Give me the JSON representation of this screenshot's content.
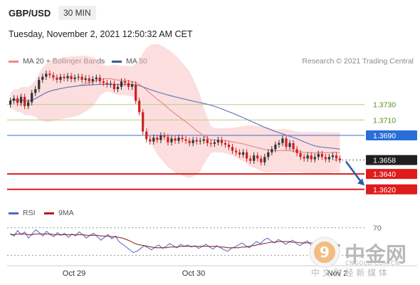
{
  "header": {
    "symbol": "GBP/USD",
    "timeframe": "30 MIN",
    "datetime": "Tuesday, November 2, 2021 12:50:32 AM CET"
  },
  "legend": {
    "ma20_bb": "MA 20 + Bollinger Bands",
    "ma50": "MA 50",
    "rsi": "RSI",
    "ma9": "9MA"
  },
  "research": "Research © 2021 Trading Central",
  "colors": {
    "up_candle": "#333333",
    "down_candle": "#cc2222",
    "bollinger_band": "#f9c2c2",
    "ma20": "#e88b8b",
    "ma50": "#6a7bbf",
    "support": "#e01b1b",
    "resistance_main": "#3a6fd0",
    "resistance_minor": "#b8cc8a",
    "rsi": "#4a67c8",
    "rsi_ma": "#8b1a1a"
  },
  "chart_data": {
    "type": "candlestick",
    "x_ticks": [
      "Oct 29",
      "Oct 30",
      "Nov 2"
    ],
    "y_range": [
      1.3605,
      1.3775
    ],
    "last_price": 1.3658,
    "levels": [
      {
        "label": "1.3730",
        "value": 1.373,
        "kind": "resistance-minor"
      },
      {
        "label": "1.3710",
        "value": 1.371,
        "kind": "resistance-minor"
      },
      {
        "label": "1.3690",
        "value": 1.369,
        "kind": "resistance"
      },
      {
        "label": "1.3658",
        "value": 1.3658,
        "kind": "last-price"
      },
      {
        "label": "1.3640",
        "value": 1.364,
        "kind": "support"
      },
      {
        "label": "1.3620",
        "value": 1.362,
        "kind": "support"
      }
    ],
    "forecast_arrow": {
      "from": 1.3658,
      "to": 1.3625,
      "direction": "down"
    },
    "candles_close": [
      1.3735,
      1.3738,
      1.3732,
      1.374,
      1.3728,
      1.3733,
      1.3745,
      1.375,
      1.3762,
      1.3766,
      1.377,
      1.3768,
      1.3765,
      1.3762,
      1.3766,
      1.3764,
      1.3767,
      1.3763,
      1.3765,
      1.3766,
      1.3762,
      1.3764,
      1.376,
      1.3763,
      1.3765,
      1.376,
      1.3758,
      1.3756,
      1.3757,
      1.375,
      1.3753,
      1.376,
      1.3758,
      1.3753,
      1.3756,
      1.3735,
      1.372,
      1.3695,
      1.3685,
      1.3682,
      1.3687,
      1.3684,
      1.369,
      1.3688,
      1.3681,
      1.3686,
      1.3683,
      1.3687,
      1.3685,
      1.3683,
      1.368,
      1.3684,
      1.3682,
      1.3683,
      1.3685,
      1.368,
      1.3679,
      1.3681,
      1.3684,
      1.368,
      1.3678,
      1.3675,
      1.367,
      1.3668,
      1.3665,
      1.3668,
      1.366,
      1.3657,
      1.3664,
      1.366,
      1.3655,
      1.3662,
      1.3668,
      1.3672,
      1.3678,
      1.368,
      1.3686,
      1.3675,
      1.368,
      1.3672,
      1.3667,
      1.3662,
      1.366,
      1.3664,
      1.3659,
      1.3662,
      1.3666,
      1.3662,
      1.3659,
      1.3662,
      1.3664,
      1.366,
      1.3658
    ],
    "candles_open": [
      1.373,
      1.3735,
      1.3738,
      1.3732,
      1.374,
      1.3728,
      1.3733,
      1.3745,
      1.375,
      1.3762,
      1.3766,
      1.377,
      1.3768,
      1.3765,
      1.3762,
      1.3766,
      1.3764,
      1.3767,
      1.3763,
      1.3765,
      1.3766,
      1.3762,
      1.3764,
      1.376,
      1.3763,
      1.3765,
      1.376,
      1.3758,
      1.3756,
      1.3757,
      1.375,
      1.3753,
      1.376,
      1.3758,
      1.3753,
      1.3756,
      1.3735,
      1.372,
      1.3695,
      1.3685,
      1.3682,
      1.3687,
      1.3684,
      1.369,
      1.3688,
      1.3681,
      1.3686,
      1.3683,
      1.3687,
      1.3685,
      1.3683,
      1.368,
      1.3684,
      1.3682,
      1.3683,
      1.3685,
      1.368,
      1.3679,
      1.3681,
      1.3684,
      1.368,
      1.3678,
      1.3675,
      1.367,
      1.3668,
      1.3665,
      1.3668,
      1.366,
      1.3657,
      1.3664,
      1.366,
      1.3655,
      1.3662,
      1.3668,
      1.3672,
      1.3678,
      1.368,
      1.3686,
      1.3675,
      1.368,
      1.3672,
      1.3667,
      1.3662,
      1.366,
      1.3664,
      1.3659,
      1.3662,
      1.3666,
      1.3662,
      1.3659,
      1.3662,
      1.3664,
      1.366
    ],
    "rsi_range": [
      20,
      80
    ],
    "rsi_labels": [
      "70"
    ],
    "rsi": [
      62,
      58,
      66,
      60,
      64,
      55,
      61,
      67,
      63,
      58,
      65,
      60,
      57,
      63,
      59,
      62,
      56,
      61,
      58,
      64,
      60,
      55,
      59,
      62,
      57,
      52,
      56,
      60,
      54,
      58,
      50,
      46,
      42,
      38,
      34,
      36,
      40,
      44,
      41,
      38,
      42,
      45,
      40,
      43,
      47,
      44,
      41,
      46,
      43,
      45,
      42,
      44,
      40,
      43,
      46,
      42,
      39,
      44,
      41,
      38,
      36,
      40,
      42,
      45,
      48,
      44,
      41,
      46,
      50,
      47,
      52,
      55,
      51,
      48,
      53,
      50,
      46,
      49,
      52,
      47,
      44,
      48,
      51,
      45,
      42,
      46,
      49,
      44,
      41,
      47,
      45,
      43
    ],
    "rsi_ma": [
      60,
      60,
      61,
      61,
      61,
      60,
      60,
      61,
      61,
      61,
      61,
      61,
      60,
      60,
      60,
      60,
      60,
      60,
      60,
      60,
      60,
      59,
      59,
      59,
      59,
      58,
      58,
      58,
      57,
      57,
      56,
      55,
      53,
      51,
      48,
      46,
      45,
      44,
      43,
      42,
      41,
      41,
      41,
      41,
      42,
      42,
      42,
      43,
      43,
      43,
      43,
      43,
      43,
      43,
      43,
      43,
      43,
      43,
      42,
      42,
      41,
      41,
      41,
      41,
      42,
      42,
      43,
      44,
      45,
      46,
      47,
      48,
      49,
      49,
      50,
      50,
      50,
      50,
      49,
      49,
      48,
      48,
      48,
      48,
      47,
      47,
      47,
      46,
      46,
      46,
      45,
      45
    ]
  },
  "watermark": {
    "brand_cn": "中金网",
    "domain": "CNGOLD.COM.CN",
    "slogan_cn": "中 文 财 经 新 媒 体"
  }
}
